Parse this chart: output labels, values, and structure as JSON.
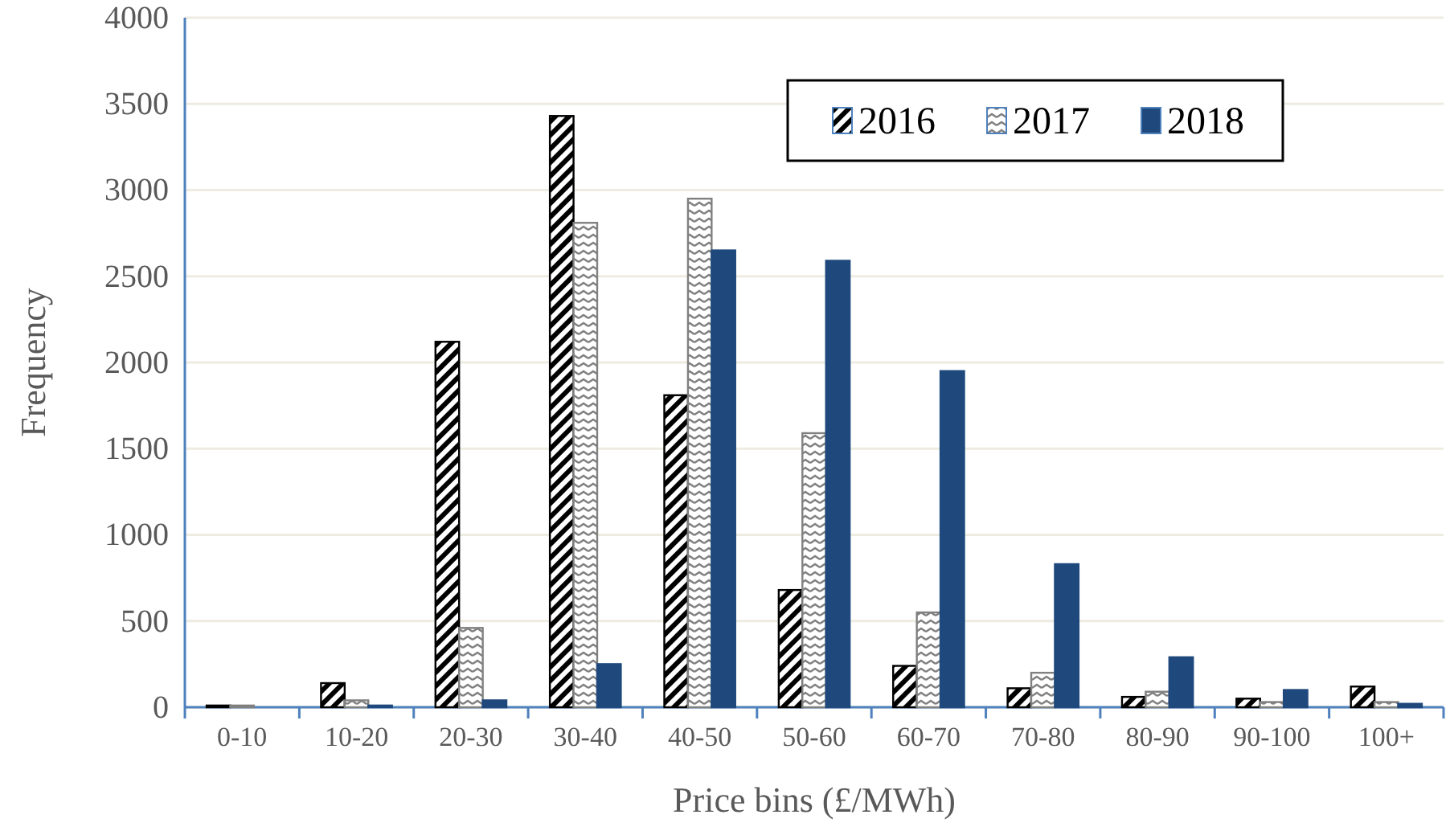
{
  "chart_data": {
    "type": "bar",
    "xlabel": "Price bins (£/MWh)",
    "ylabel": "Frequency",
    "categories": [
      "0-10",
      "10-20",
      "20-30",
      "30-40",
      "40-50",
      "50-60",
      "60-70",
      "70-80",
      "80-90",
      "90-100",
      "100+"
    ],
    "series": [
      {
        "name": "2016",
        "color": "#000000",
        "values": [
          10,
          140,
          2120,
          3430,
          1810,
          680,
          240,
          110,
          60,
          50,
          120
        ]
      },
      {
        "name": "2017",
        "color": "#808080",
        "values": [
          10,
          40,
          460,
          2810,
          2950,
          1590,
          550,
          200,
          90,
          30,
          30
        ]
      },
      {
        "name": "2018",
        "color": "#1f497d",
        "values": [
          0,
          10,
          40,
          250,
          2650,
          2590,
          1950,
          830,
          290,
          100,
          20
        ]
      }
    ],
    "ylim": [
      0,
      4000
    ],
    "yticks": [
      0,
      500,
      1000,
      1500,
      2000,
      2500,
      3000,
      3500,
      4000
    ],
    "grid": "y",
    "legend": "top right"
  }
}
